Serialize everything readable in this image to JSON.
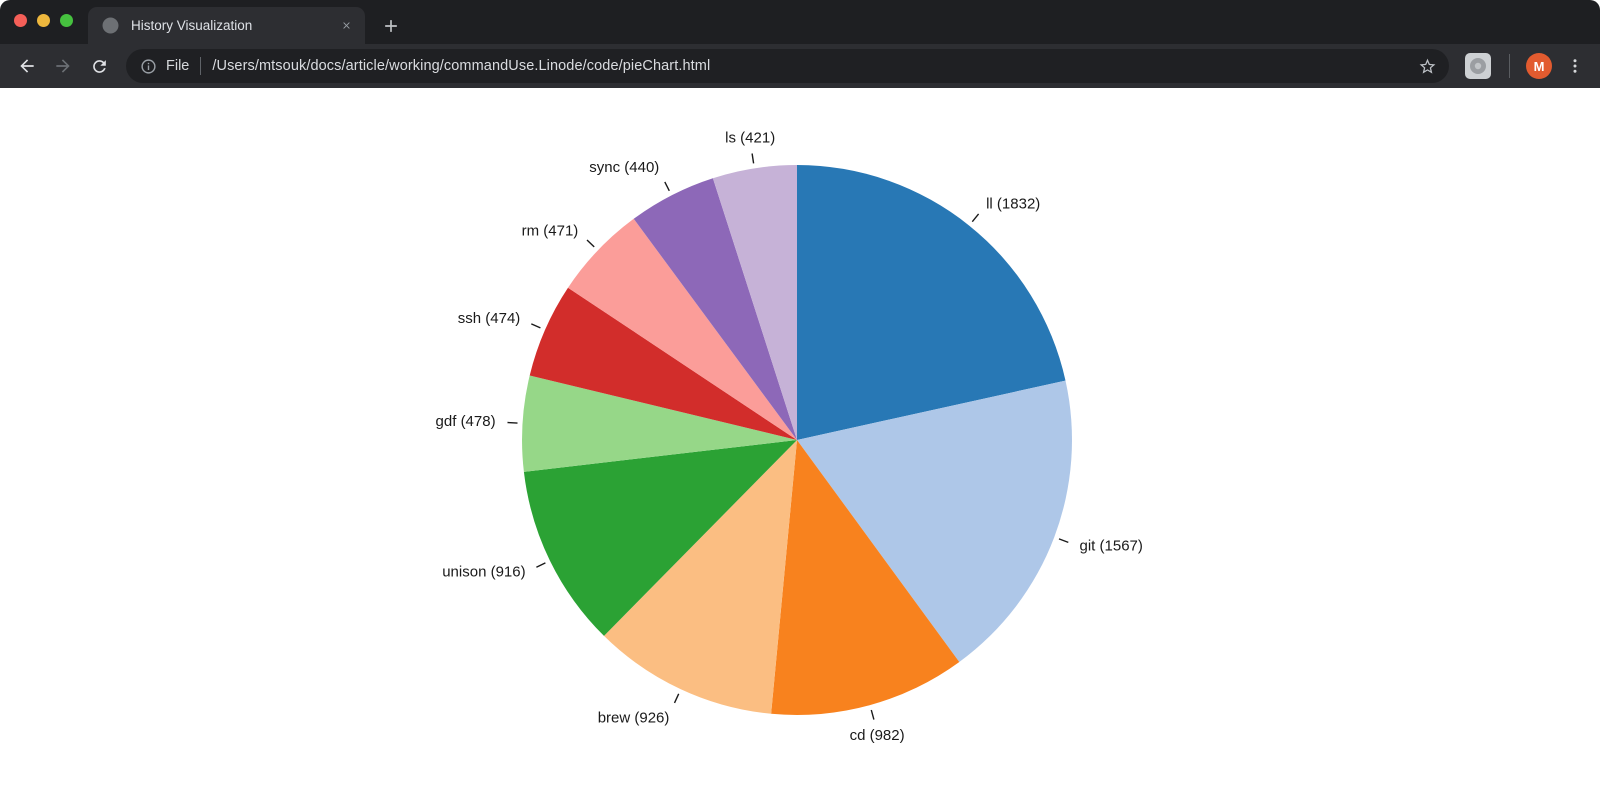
{
  "browser": {
    "tab_title": "History Visualization",
    "url_scheme_label": "File",
    "url_path": "/Users/mtsouk/docs/article/working/commandUse.Linode/code/pieChart.html",
    "avatar_letter": "M"
  },
  "colors": {
    "frame_bg": "#1e1f22",
    "toolbar_bg": "#2d2e32",
    "omnibox_bg": "#1f2023",
    "traffic_red": "#f55f58",
    "traffic_yellow": "#eeb73d",
    "traffic_green": "#46c13f",
    "avatar_bg": "#e25b2f"
  },
  "chart_data": {
    "type": "pie",
    "title": "",
    "legend": "none",
    "start_angle_deg": 0,
    "direction": "clockwise",
    "categories": [
      "ll",
      "git",
      "cd",
      "brew",
      "unison",
      "gdf",
      "ssh",
      "rm",
      "sync",
      "ls"
    ],
    "values": [
      1832,
      1567,
      982,
      926,
      916,
      478,
      474,
      471,
      440,
      421
    ],
    "labels": [
      "ll (1832)",
      "git (1567)",
      "cd (982)",
      "brew (926)",
      "unison (916)",
      "gdf (478)",
      "ssh (474)",
      "rm (471)",
      "sync (440)",
      "ls (421)"
    ],
    "colors": [
      "#2878b5",
      "#aec7e8",
      "#f8821e",
      "#fbbe82",
      "#2ba234",
      "#96d788",
      "#d22d2b",
      "#fb9d99",
      "#8d68b8",
      "#c6b2d7"
    ]
  }
}
